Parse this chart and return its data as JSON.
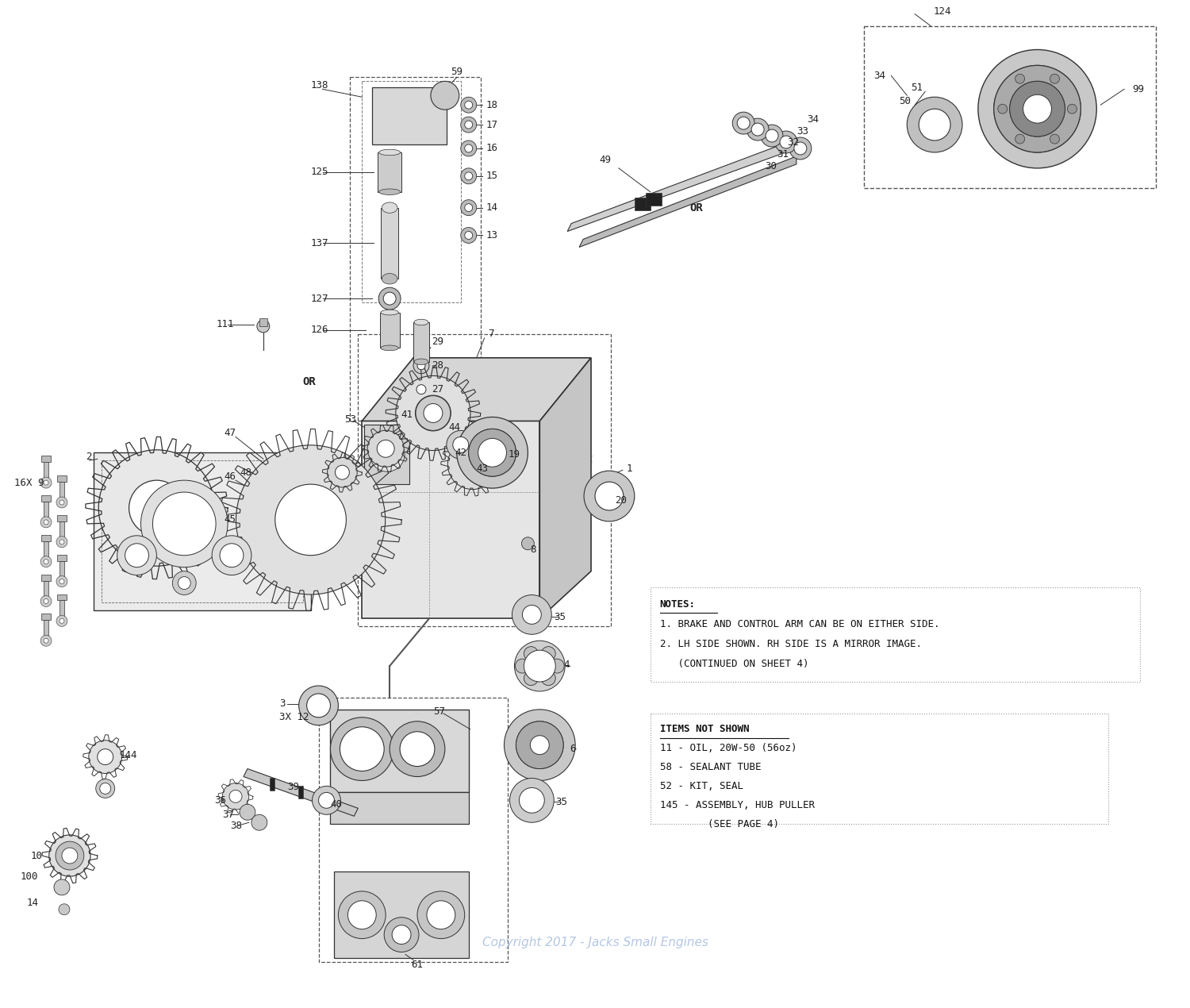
{
  "bg_color": "#ffffff",
  "line_color": "#333333",
  "notes": [
    "NOTES:",
    "1. BRAKE AND CONTROL ARM CAN BE ON EITHER SIDE.",
    "2. LH SIDE SHOWN. RH SIDE IS A MIRROR IMAGE.",
    "   (CONTINUED ON SHEET 4)"
  ],
  "items_not_shown_title": "ITEMS NOT SHOWN",
  "items_not_shown": [
    "11 - OIL, 20W-50 (56oz)",
    "58 - SEALANT TUBE",
    "52 - KIT, SEAL",
    "145 - ASSEMBLY, HUB PULLER",
    "        (SEE PAGE 4)"
  ],
  "copyright": "Copyright 2017 - Jacks Small Engines",
  "watermark": "JACKS\nSMALL ENGINES"
}
